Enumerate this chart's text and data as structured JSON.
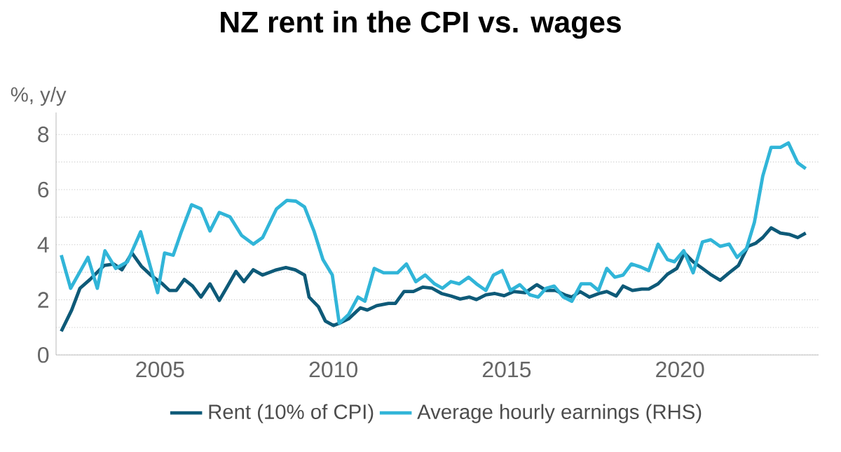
{
  "chart_data": {
    "type": "line",
    "title": "NZ rent in the CPI vs. wages",
    "ylabel": "%, y/y",
    "xlim": [
      2002,
      2024
    ],
    "xticks": [
      2005,
      2010,
      2015,
      2020
    ],
    "ylim": [
      0,
      8.8
    ],
    "yticks": [
      0,
      {
        "value": 1,
        "label": null
      },
      2,
      {
        "value": 3,
        "label": null
      },
      4,
      {
        "value": 5,
        "label": null
      },
      6,
      {
        "value": 7,
        "label": null
      },
      8
    ],
    "grid": "y",
    "legend": "bottom",
    "line_style": "solid",
    "marker": "none",
    "series": [
      {
        "name": "Rent (10% of CPI)",
        "color": "#0e5a78",
        "x": [
          2002.15,
          2002.45,
          2002.69,
          2002.98,
          2003.39,
          2003.66,
          2003.9,
          2004.19,
          2004.46,
          2004.73,
          2005.07,
          2005.27,
          2005.47,
          2005.7,
          2005.94,
          2006.18,
          2006.44,
          2006.71,
          2006.95,
          2007.19,
          2007.42,
          2007.69,
          2007.96,
          2008.36,
          2008.63,
          2008.9,
          2009.17,
          2009.3,
          2009.57,
          2009.77,
          2010.0,
          2010.17,
          2010.44,
          2010.78,
          2010.98,
          2011.25,
          2011.59,
          2011.79,
          2012.04,
          2012.31,
          2012.58,
          2012.85,
          2013.12,
          2013.39,
          2013.66,
          2013.92,
          2014.13,
          2014.4,
          2014.66,
          2014.93,
          2015.2,
          2015.54,
          2015.87,
          2016.14,
          2016.41,
          2016.68,
          2016.88,
          2017.12,
          2017.39,
          2017.66,
          2017.89,
          2018.16,
          2018.36,
          2018.63,
          2018.9,
          2019.1,
          2019.37,
          2019.64,
          2019.91,
          2020.13,
          2020.38,
          2020.65,
          2020.91,
          2021.16,
          2021.42,
          2021.69,
          2021.96,
          2022.18,
          2022.39,
          2022.63,
          2022.9,
          2023.17,
          2023.4,
          2023.63
        ],
        "values": [
          0.86,
          1.63,
          2.42,
          2.74,
          3.25,
          3.3,
          3.09,
          3.7,
          3.22,
          2.9,
          2.58,
          2.34,
          2.34,
          2.74,
          2.5,
          2.1,
          2.58,
          1.98,
          2.5,
          3.03,
          2.66,
          3.09,
          2.9,
          3.09,
          3.17,
          3.09,
          2.9,
          2.1,
          1.75,
          1.23,
          1.07,
          1.15,
          1.31,
          1.71,
          1.63,
          1.79,
          1.87,
          1.87,
          2.3,
          2.3,
          2.46,
          2.42,
          2.23,
          2.14,
          2.03,
          2.1,
          2.01,
          2.18,
          2.23,
          2.15,
          2.3,
          2.26,
          2.55,
          2.34,
          2.34,
          2.18,
          2.1,
          2.3,
          2.1,
          2.23,
          2.3,
          2.14,
          2.5,
          2.34,
          2.39,
          2.39,
          2.58,
          2.93,
          3.14,
          3.7,
          3.38,
          3.14,
          2.9,
          2.71,
          2.98,
          3.25,
          3.94,
          4.05,
          4.26,
          4.61,
          4.42,
          4.37,
          4.26,
          4.42
        ]
      },
      {
        "name": "Average hourly earnings (RHS)",
        "color": "#31b5d8",
        "x": [
          2002.15,
          2002.42,
          2002.92,
          2003.19,
          2003.41,
          2003.72,
          2004.06,
          2004.44,
          2004.93,
          2005.13,
          2005.38,
          2005.6,
          2005.91,
          2006.18,
          2006.44,
          2006.71,
          2007.02,
          2007.35,
          2007.69,
          2007.96,
          2008.36,
          2008.66,
          2008.92,
          2009.17,
          2009.44,
          2009.7,
          2009.97,
          2010.17,
          2010.44,
          2010.71,
          2010.91,
          2011.18,
          2011.45,
          2011.85,
          2012.11,
          2012.38,
          2012.65,
          2012.92,
          2013.15,
          2013.39,
          2013.63,
          2013.9,
          2014.13,
          2014.4,
          2014.62,
          2014.87,
          2015.11,
          2015.38,
          2015.67,
          2015.91,
          2016.14,
          2016.37,
          2016.64,
          2016.88,
          2017.15,
          2017.42,
          2017.65,
          2017.89,
          2018.12,
          2018.36,
          2018.6,
          2018.87,
          2019.1,
          2019.37,
          2019.64,
          2019.84,
          2020.11,
          2020.38,
          2020.65,
          2020.89,
          2021.16,
          2021.42,
          2021.65,
          2021.92,
          2022.15,
          2022.39,
          2022.63,
          2022.9,
          2023.13,
          2023.4,
          2023.63
        ],
        "values": [
          3.62,
          2.42,
          3.54,
          2.42,
          3.78,
          3.14,
          3.38,
          4.47,
          2.26,
          3.7,
          3.62,
          4.42,
          5.45,
          5.3,
          4.5,
          5.17,
          5.01,
          4.34,
          4.02,
          4.26,
          5.3,
          5.61,
          5.58,
          5.37,
          4.5,
          3.46,
          2.9,
          1.15,
          1.47,
          2.1,
          1.95,
          3.14,
          2.98,
          2.98,
          3.3,
          2.66,
          2.9,
          2.58,
          2.42,
          2.66,
          2.58,
          2.82,
          2.58,
          2.34,
          2.9,
          3.06,
          2.34,
          2.55,
          2.18,
          2.1,
          2.42,
          2.5,
          2.1,
          1.95,
          2.58,
          2.58,
          2.34,
          3.14,
          2.82,
          2.9,
          3.3,
          3.19,
          3.06,
          4.02,
          3.46,
          3.38,
          3.78,
          2.98,
          4.1,
          4.18,
          3.94,
          4.02,
          3.54,
          3.86,
          4.82,
          6.49,
          7.53,
          7.53,
          7.69,
          6.97,
          6.76
        ]
      }
    ]
  }
}
